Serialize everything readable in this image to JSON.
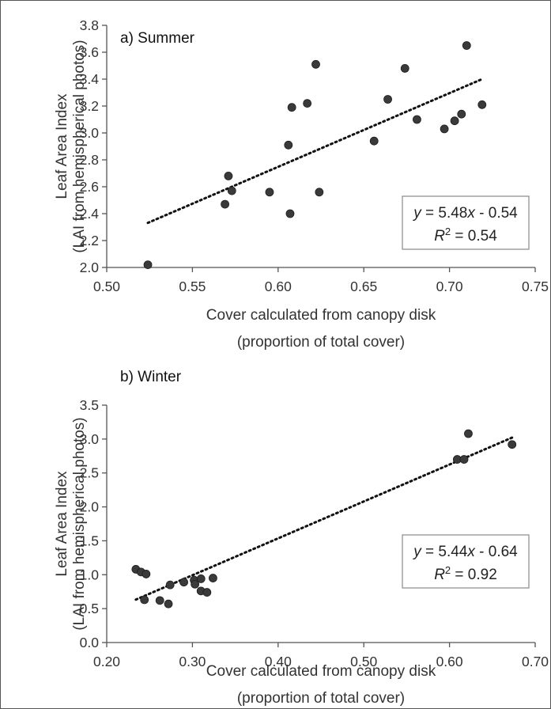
{
  "colors": {
    "point": "#3a3a3a",
    "trendline": "#111111",
    "axis": "#555555",
    "text": "#333333"
  },
  "chart_data": [
    {
      "type": "scatter",
      "panel_label": "a) Summer",
      "xlabel_lines": [
        "Cover calculated from canopy disk",
        "(proportion of total cover)"
      ],
      "ylabel_lines": [
        "Leaf Area Index",
        "(LAI from hemispherical photos)"
      ],
      "xlim": [
        0.5,
        0.75
      ],
      "ylim": [
        2.0,
        3.8
      ],
      "xticks": [
        0.5,
        0.55,
        0.6,
        0.65,
        0.7,
        0.75
      ],
      "yticks": [
        2.0,
        2.2,
        2.4,
        2.6,
        2.8,
        3.0,
        3.2,
        3.4,
        3.6,
        3.8
      ],
      "xtick_labels": [
        "0.50",
        "0.55",
        "0.60",
        "0.65",
        "0.70",
        "0.75"
      ],
      "ytick_labels": [
        "2.0",
        "2.2",
        "2.4",
        "2.6",
        "2.8",
        "3.0",
        "3.2",
        "3.4",
        "3.6",
        "3.8"
      ],
      "grid": false,
      "points": [
        {
          "x": 0.524,
          "y": 2.02
        },
        {
          "x": 0.569,
          "y": 2.47
        },
        {
          "x": 0.571,
          "y": 2.68
        },
        {
          "x": 0.573,
          "y": 2.57
        },
        {
          "x": 0.595,
          "y": 2.56
        },
        {
          "x": 0.606,
          "y": 2.91
        },
        {
          "x": 0.607,
          "y": 2.4
        },
        {
          "x": 0.608,
          "y": 3.19
        },
        {
          "x": 0.617,
          "y": 3.22
        },
        {
          "x": 0.622,
          "y": 3.51
        },
        {
          "x": 0.624,
          "y": 2.56
        },
        {
          "x": 0.656,
          "y": 2.94
        },
        {
          "x": 0.664,
          "y": 3.25
        },
        {
          "x": 0.674,
          "y": 3.48
        },
        {
          "x": 0.681,
          "y": 3.1
        },
        {
          "x": 0.697,
          "y": 3.03
        },
        {
          "x": 0.703,
          "y": 3.09
        },
        {
          "x": 0.707,
          "y": 3.14
        },
        {
          "x": 0.71,
          "y": 3.65
        },
        {
          "x": 0.719,
          "y": 3.21
        }
      ],
      "trendline": {
        "slope": 5.48,
        "intercept": -0.54,
        "x_range": [
          0.524,
          0.719
        ]
      },
      "equation_lhs": "y",
      "equation_rhs": " = 5.48",
      "equation_var": "x",
      "equation_tail": " - 0.54",
      "r2_label": "R",
      "r2_sup": "2",
      "r2_value": " = 0.54"
    },
    {
      "type": "scatter",
      "panel_label": "b) Winter",
      "xlabel_lines": [
        "Cover calculated from canopy disk",
        "(proportion of total cover)"
      ],
      "ylabel_lines": [
        "Leaf Area Index",
        "(LAI from hemispherical photos)"
      ],
      "xlim": [
        0.2,
        0.7
      ],
      "ylim": [
        0.0,
        3.5
      ],
      "xticks": [
        0.2,
        0.3,
        0.4,
        0.5,
        0.6,
        0.7
      ],
      "yticks": [
        0.0,
        0.5,
        1.0,
        1.5,
        2.0,
        2.5,
        3.0,
        3.5
      ],
      "xtick_labels": [
        "0.20",
        "0.30",
        "0.40",
        "0.50",
        "0.60",
        "0.70"
      ],
      "ytick_labels": [
        "0.0",
        "0.5",
        "1.0",
        "1.5",
        "2.0",
        "2.5",
        "3.0",
        "3.5"
      ],
      "grid": false,
      "points": [
        {
          "x": 0.234,
          "y": 1.08
        },
        {
          "x": 0.24,
          "y": 1.04
        },
        {
          "x": 0.246,
          "y": 1.01
        },
        {
          "x": 0.244,
          "y": 0.63
        },
        {
          "x": 0.262,
          "y": 0.62
        },
        {
          "x": 0.272,
          "y": 0.57
        },
        {
          "x": 0.274,
          "y": 0.85
        },
        {
          "x": 0.29,
          "y": 0.89
        },
        {
          "x": 0.302,
          "y": 0.92
        },
        {
          "x": 0.303,
          "y": 0.86
        },
        {
          "x": 0.31,
          "y": 0.94
        },
        {
          "x": 0.31,
          "y": 0.76
        },
        {
          "x": 0.317,
          "y": 0.74
        },
        {
          "x": 0.324,
          "y": 0.95
        },
        {
          "x": 0.609,
          "y": 2.7
        },
        {
          "x": 0.617,
          "y": 2.7
        },
        {
          "x": 0.622,
          "y": 3.08
        },
        {
          "x": 0.673,
          "y": 2.92
        }
      ],
      "trendline": {
        "slope": 5.44,
        "intercept": -0.64,
        "x_range": [
          0.234,
          0.673
        ]
      },
      "equation_lhs": "y",
      "equation_rhs": " = 5.44",
      "equation_var": "x",
      "equation_tail": " - 0.64",
      "r2_label": "R",
      "r2_sup": "2",
      "r2_value": " = 0.92"
    }
  ]
}
